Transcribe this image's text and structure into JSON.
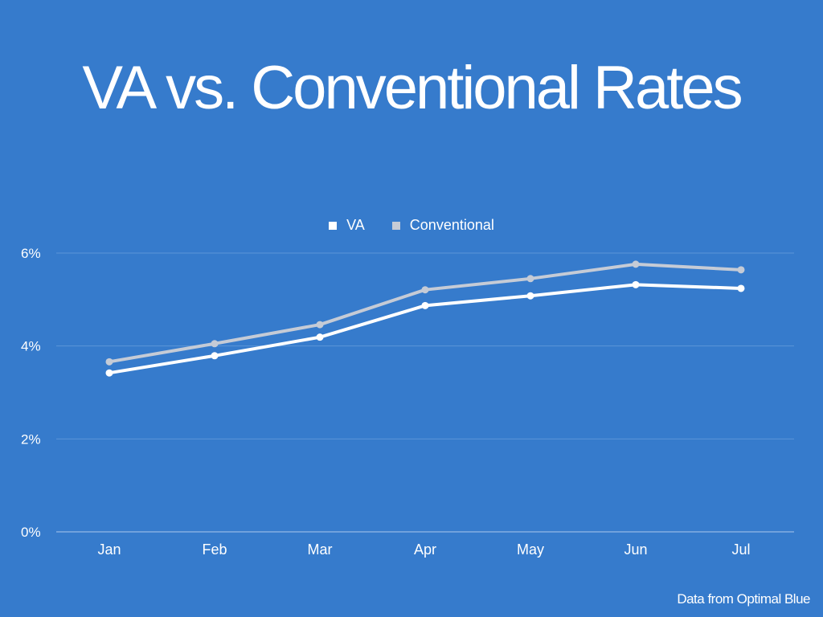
{
  "title": "VA vs. Conventional Rates",
  "source_note": "Data from Optimal Blue",
  "colors": {
    "background": "#367bcc",
    "va": "#ffffff",
    "conventional": "#c5cbd6",
    "grid": "#5c96d8",
    "text": "#ffffff"
  },
  "chart_data": {
    "type": "line",
    "title": "VA vs. Conventional Rates",
    "xlabel": "",
    "ylabel": "",
    "categories": [
      "Jan",
      "Feb",
      "Mar",
      "Apr",
      "May",
      "Jun",
      "Jul"
    ],
    "series": [
      {
        "name": "VA",
        "values": [
          3.42,
          3.79,
          4.19,
          4.87,
          5.08,
          5.32,
          5.24
        ]
      },
      {
        "name": "Conventional",
        "values": [
          3.66,
          4.05,
          4.46,
          5.21,
          5.45,
          5.76,
          5.64
        ]
      }
    ],
    "ylim": [
      0,
      6
    ],
    "yticks": [
      0,
      2,
      4,
      6
    ],
    "ytick_labels": [
      "0%",
      "2%",
      "4%",
      "6%"
    ],
    "grid": true,
    "legend_position": "top-center"
  }
}
